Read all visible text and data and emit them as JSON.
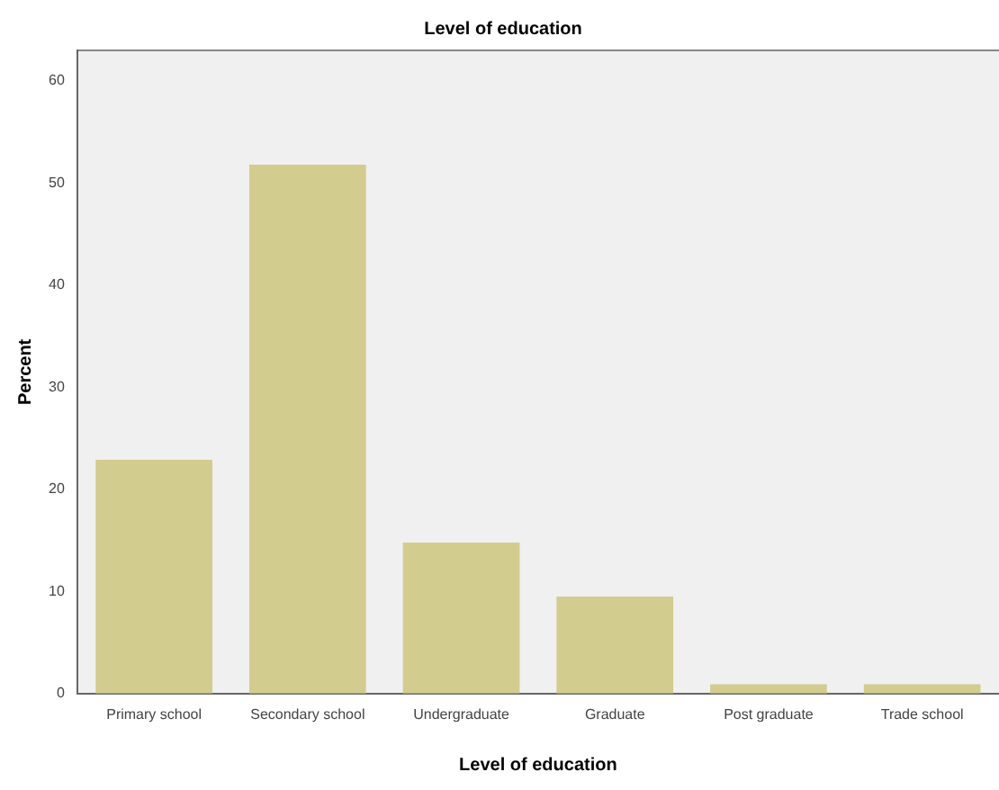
{
  "chart_data": {
    "type": "bar",
    "title": "Level of education",
    "xlabel": "Level of education",
    "ylabel": "Percent",
    "categories": [
      "Primary school",
      "Secondary school",
      "Undergraduate",
      "Graduate",
      "Post graduate",
      "Trade school"
    ],
    "values": [
      22.9,
      51.8,
      14.8,
      9.5,
      0.9,
      0.9
    ],
    "color": "#d3cc8f",
    "ylim": [
      0,
      63
    ],
    "yticks": [
      0,
      10,
      20,
      30,
      40,
      50,
      60
    ],
    "grid": false,
    "legend": false
  }
}
